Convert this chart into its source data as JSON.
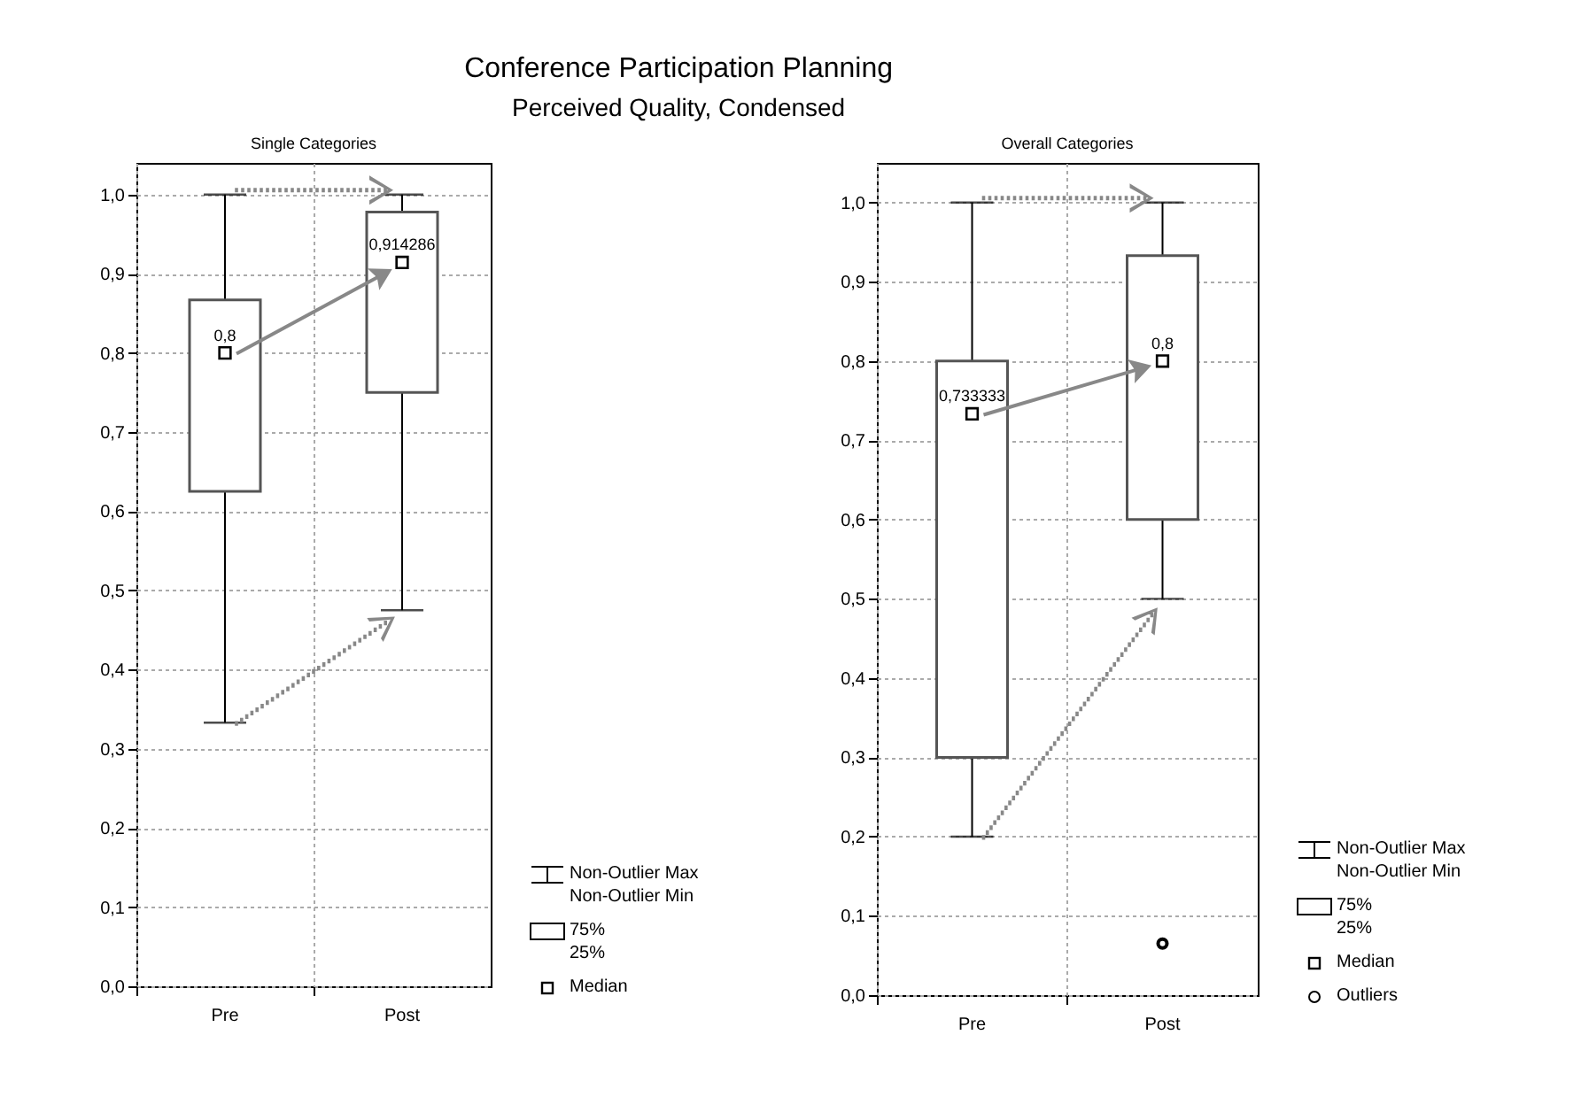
{
  "chart_data": [
    {
      "type": "box",
      "title": "Single Categories",
      "categories": [
        "Pre",
        "Post"
      ],
      "series": [
        {
          "color": "#555555",
          "boxes": [
            {
              "low": 0.333,
              "q1": 0.625,
              "median": 0.8,
              "q3": 0.867,
              "high": 1.0
            },
            {
              "low": 0.475,
              "q1": 0.75,
              "median": 0.914286,
              "q3": 0.978,
              "high": 1.0
            }
          ]
        }
      ],
      "value_labels": [
        "0,8",
        "0,914286"
      ],
      "ylim": [
        0,
        1.04
      ],
      "yticks": [
        {
          "value": 0,
          "label": "0,0"
        },
        {
          "value": 0.1,
          "label": "0,1"
        },
        {
          "value": 0.2,
          "label": "0,2"
        },
        {
          "value": 0.3,
          "label": "0,3"
        },
        {
          "value": 0.4,
          "label": "0,4"
        },
        {
          "value": 0.5,
          "label": "0,5"
        },
        {
          "value": 0.6,
          "label": "0,6"
        },
        {
          "value": 0.7,
          "label": "0,7"
        },
        {
          "value": 0.8,
          "label": "0,8"
        },
        {
          "value": 0.9,
          "label": "0,9"
        },
        {
          "value": 1,
          "label": "1,0"
        }
      ],
      "grid": true,
      "marker": "square",
      "annotations": [
        "Conference Participation Planning",
        "Perceived Quality, Condensed",
        "Non-Outlier Max",
        "Non-Outlier Min",
        "75%",
        "25%",
        "Median"
      ]
    },
    {
      "type": "box",
      "title": "Overall Categories",
      "categories": [
        "Pre",
        "Post"
      ],
      "series": [
        {
          "color": "#555555",
          "boxes": [
            {
              "low": 0.2,
              "q1": 0.3,
              "median": 0.733333,
              "q3": 0.8,
              "high": 1.0
            },
            {
              "low": 0.5,
              "q1": 0.6,
              "median": 0.8,
              "q3": 0.933,
              "high": 1.0,
              "outliers": [
                0.065
              ]
            }
          ]
        }
      ],
      "value_labels": [
        "0,733333",
        "0,8"
      ],
      "ylim": [
        0,
        1.05
      ],
      "yticks": [
        {
          "value": 0,
          "label": "0,0"
        },
        {
          "value": 0.1,
          "label": "0,1"
        },
        {
          "value": 0.2,
          "label": "0,2"
        },
        {
          "value": 0.3,
          "label": "0,3"
        },
        {
          "value": 0.4,
          "label": "0,4"
        },
        {
          "value": 0.5,
          "label": "0,5"
        },
        {
          "value": 0.6,
          "label": "0,6"
        },
        {
          "value": 0.7,
          "label": "0,7"
        },
        {
          "value": 0.8,
          "label": "0,8"
        },
        {
          "value": 0.9,
          "label": "0,9"
        },
        {
          "value": 1,
          "label": "1,0"
        }
      ],
      "grid": true,
      "marker": "square",
      "annotations": [
        "Non-Outlier Max",
        "Non-Outlier Min",
        "75%",
        "25%",
        "Median",
        "Outliers"
      ]
    }
  ]
}
